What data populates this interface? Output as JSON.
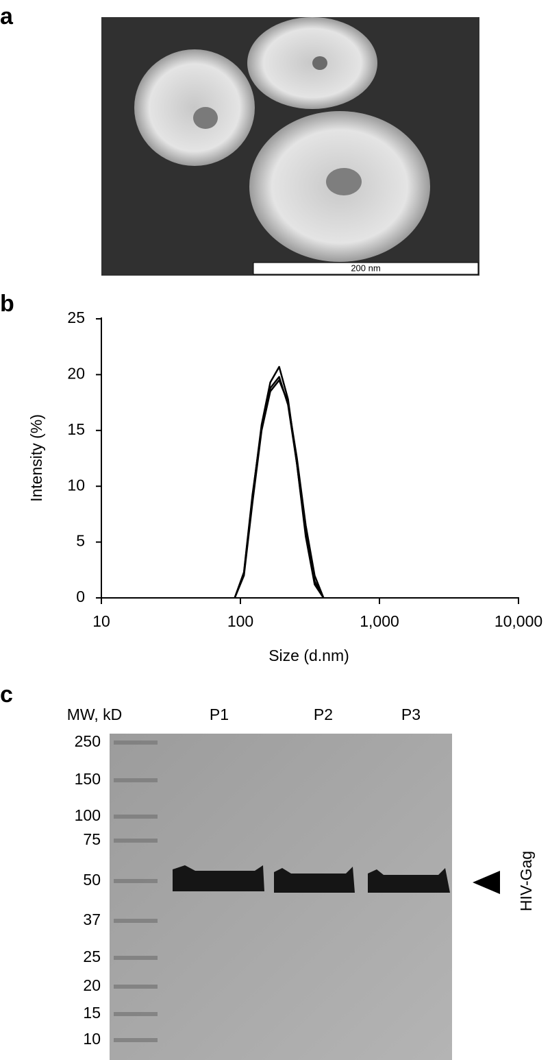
{
  "panel_labels": [
    "a",
    "b",
    "c"
  ],
  "micrograph": {
    "scale_bar": "200 nm"
  },
  "chart_data": {
    "type": "line",
    "xlabel": "Size (d.nm)",
    "ylabel": "Intensity (%)",
    "x": [
      91,
      106,
      122,
      142,
      164,
      190,
      220,
      255,
      295,
      342,
      396
    ],
    "series": [
      {
        "color": "#000000",
        "values": [
          0,
          2.2,
          9,
          15.5,
          19.3,
          20.7,
          17.8,
          12,
          5.5,
          1.2,
          0
        ]
      },
      {
        "color": "#000000",
        "values": [
          0,
          2.0,
          8.5,
          15,
          18.5,
          19.5,
          17.5,
          12.5,
          6.5,
          2.0,
          0
        ]
      },
      {
        "color": "#000000",
        "values": [
          0,
          2.3,
          9.2,
          15.2,
          18.8,
          19.8,
          17.3,
          12,
          5.8,
          1.5,
          0
        ]
      }
    ],
    "xscale": "log",
    "xlim": [
      10,
      10000
    ],
    "xticks": [
      10,
      100,
      {
        "value": 1000,
        "label": "1,000"
      },
      {
        "value": 10000,
        "label": "10,000"
      }
    ],
    "ylim": [
      0,
      25
    ],
    "yticks": [
      0,
      5,
      10,
      15,
      20,
      25
    ],
    "grid": false
  },
  "blot": {
    "mw_header": "MW, kD",
    "markers": [
      "250",
      "150",
      "100",
      "75",
      "50",
      "37",
      "25",
      "20",
      "15",
      "10"
    ],
    "lanes": [
      "P1",
      "P2",
      "P3"
    ],
    "band_label": "HIV-Gag"
  }
}
